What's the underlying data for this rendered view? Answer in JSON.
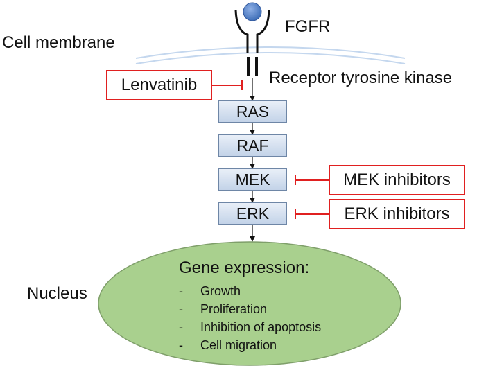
{
  "receptor": {
    "name": "FGFR",
    "domain_label": "Receptor tyrosine kinase"
  },
  "labels": {
    "membrane": "Cell membrane",
    "nucleus": "Nucleus"
  },
  "pathway": [
    "RAS",
    "RAF",
    "MEK",
    "ERK"
  ],
  "inhibitors": {
    "lenvatinib": "Lenvatinib",
    "mek": "MEK inhibitors",
    "erk": "ERK inhibitors"
  },
  "nucleus": {
    "title": "Gene expression:",
    "bullet": "-",
    "effects": [
      "Growth",
      "Proliferation",
      "Inhibition of apoptosis",
      "Cell migration"
    ]
  },
  "colors": {
    "inhibition": "#e02020",
    "box_border": "#6e86a6",
    "nucleus_fill": "#a9d08e",
    "nucleus_border": "#7f9f6a",
    "membrane": "#c4d7ee",
    "ligand": "#3f6fb8"
  }
}
